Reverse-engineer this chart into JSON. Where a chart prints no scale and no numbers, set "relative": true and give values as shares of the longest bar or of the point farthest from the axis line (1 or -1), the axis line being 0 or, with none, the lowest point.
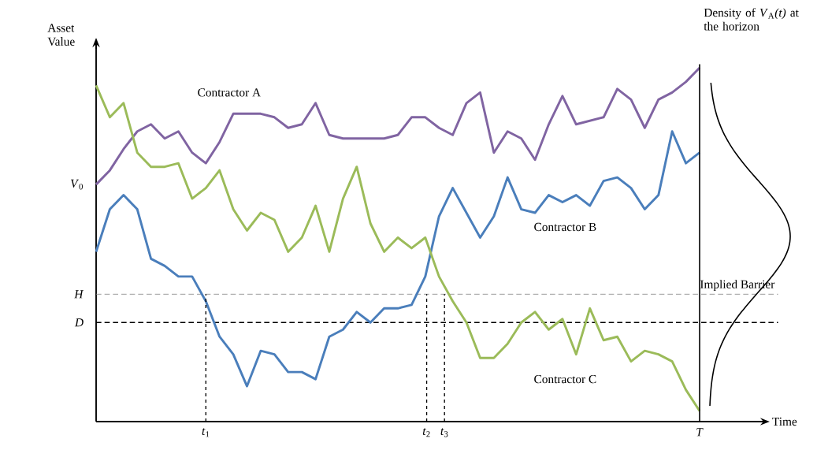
{
  "chart_data": {
    "type": "line",
    "relative": true,
    "ylabel": "Asset Value",
    "categories": [
      null,
      null,
      null,
      null,
      null,
      null,
      null,
      null,
      null,
      null,
      null,
      null,
      null,
      null,
      null,
      null,
      null,
      null,
      null,
      null,
      null,
      null,
      null,
      null,
      null,
      null,
      null,
      null,
      null,
      null,
      null,
      null,
      null,
      null,
      null,
      null,
      null,
      null,
      null,
      null,
      null,
      null,
      null,
      null,
      null
    ],
    "series": [
      {
        "name": "Contractor A",
        "color": "#8064a2",
        "values": [
          0.67,
          0.71,
          0.77,
          0.82,
          0.84,
          0.8,
          0.82,
          0.76,
          0.73,
          0.79,
          0.87,
          0.87,
          0.87,
          0.86,
          0.83,
          0.84,
          0.9,
          0.81,
          0.8,
          0.8,
          0.8,
          0.8,
          0.81,
          0.86,
          0.86,
          0.83,
          0.81,
          0.9,
          0.93,
          0.76,
          0.82,
          0.8,
          0.74,
          0.84,
          0.92,
          0.84,
          0.85,
          0.86,
          0.94,
          0.91,
          0.83,
          0.91,
          0.93,
          0.96,
          1
        ]
      },
      {
        "name": "Contractor B",
        "color": "#4a7ebb",
        "values": [
          0.48,
          0.6,
          0.64,
          0.6,
          0.46,
          0.44,
          0.41,
          0.41,
          0.34,
          0.24,
          0.19,
          0.1,
          0.2,
          0.19,
          0.14,
          0.14,
          0.12,
          0.24,
          0.26,
          0.31,
          0.28,
          0.32,
          0.32,
          0.33,
          0.41,
          0.58,
          0.66,
          0.59,
          0.52,
          0.58,
          0.69,
          0.6,
          0.59,
          0.64,
          0.62,
          0.64,
          0.61,
          0.68,
          0.69,
          0.66,
          0.6,
          0.64,
          0.82,
          0.73,
          0.76
        ]
      },
      {
        "name": "Contractor C",
        "color": "#9bbb59",
        "values": [
          0.95,
          0.86,
          0.9,
          0.76,
          0.72,
          0.72,
          0.73,
          0.63,
          0.66,
          0.71,
          0.6,
          0.54,
          0.59,
          0.57,
          0.48,
          0.52,
          0.61,
          0.48,
          0.63,
          0.72,
          0.56,
          0.48,
          0.52,
          0.49,
          0.52,
          0.41,
          0.34,
          0.28,
          0.18,
          0.18,
          0.22,
          0.28,
          0.31,
          0.26,
          0.29,
          0.19,
          0.32,
          0.23,
          0.24,
          0.17,
          0.2,
          0.19,
          0.17,
          0.09,
          0.03
        ]
      }
    ],
    "ref_lines": [
      {
        "axis": "y",
        "value": 0.36,
        "label": "Implied Barrier",
        "color": "#808080",
        "line_style": "dashed"
      },
      {
        "axis": "y",
        "value": 0.28,
        "color": "#000000",
        "line_style": "dashed"
      }
    ],
    "annotations": [
      "*V*$_{0}$",
      "*H*",
      "*D*",
      "*t*$_{1}$",
      "*t*$_{2}$",
      "*t*$_{3}$",
      "*T*",
      "Density of *V*$_{A}$*(t)* at the horizon",
      "Time"
    ]
  }
}
